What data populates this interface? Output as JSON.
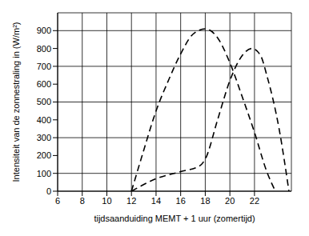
{
  "chart_data": {
    "type": "line",
    "x_label": "tijdsaanduiding MEMT + 1 uur (zomertijd)",
    "y_label": "Intensiteit van de zonnestraling in (W/m²)",
    "xlim": [
      6,
      25
    ],
    "xticks": [
      6,
      8,
      10,
      12,
      14,
      16,
      18,
      20,
      22
    ],
    "ylim": [
      0,
      1000
    ],
    "yticks": [
      0,
      100,
      200,
      300,
      400,
      500,
      600,
      700,
      800,
      900
    ],
    "grid": true,
    "series": [
      {
        "color": "#000000",
        "line_style": "dashed",
        "x": [
          12,
          13,
          14,
          15,
          16,
          17,
          18,
          19,
          20,
          21,
          22,
          23,
          23.7
        ],
        "values": [
          0,
          230,
          450,
          620,
          770,
          880,
          910,
          860,
          720,
          530,
          330,
          110,
          0
        ]
      },
      {
        "color": "#000000",
        "line_style": "dashed",
        "x": [
          12,
          14,
          16,
          17.5,
          18,
          19,
          20,
          21,
          21.8,
          22.5,
          23,
          24,
          24.8
        ],
        "values": [
          0,
          70,
          110,
          140,
          180,
          400,
          620,
          760,
          800,
          760,
          650,
          350,
          0
        ]
      }
    ]
  }
}
